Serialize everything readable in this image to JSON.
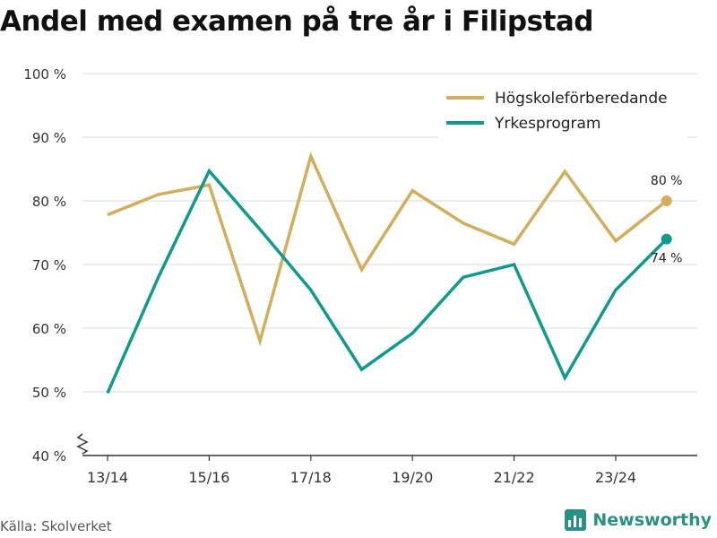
{
  "title": "Andel med examen på tre år i Filipstad",
  "source": "Källa: Skolverket",
  "brand": "Newsworthy",
  "chart_data": {
    "type": "line",
    "x": [
      "13/14",
      "14/15",
      "15/16",
      "16/17",
      "17/18",
      "18/19",
      "19/20",
      "20/21",
      "21/22",
      "22/23",
      "23/24",
      "24/25"
    ],
    "xticks": [
      "13/14",
      "15/16",
      "17/18",
      "19/20",
      "21/22",
      "23/24"
    ],
    "yticks": [
      40,
      50,
      60,
      70,
      80,
      90,
      100
    ],
    "ytick_labels": [
      "40 %",
      "50 %",
      "60 %",
      "70 %",
      "80 %",
      "90 %",
      "100 %"
    ],
    "ylim": [
      40,
      100
    ],
    "axis_break": true,
    "legend_position": "top-right",
    "series": [
      {
        "name": "Högskoleförberedande",
        "color": "#d4ad5a",
        "values": [
          77.8,
          81,
          82.5,
          58,
          87,
          69.2,
          81.6,
          76.5,
          73.2,
          84.6,
          73.7,
          80
        ],
        "end_label": "80 %"
      },
      {
        "name": "Yrkesprogram",
        "color": "#0f9a8f",
        "values": [
          49.8,
          68,
          84.7,
          75.5,
          66,
          53.5,
          59.2,
          68,
          70,
          52.2,
          66,
          74
        ],
        "end_label": "74 %"
      }
    ]
  }
}
